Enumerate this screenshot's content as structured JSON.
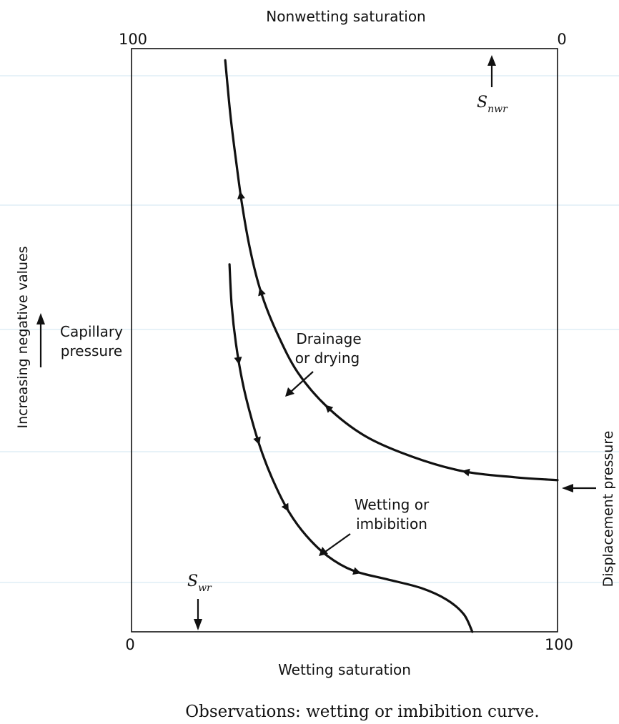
{
  "chart_data": {
    "type": "line",
    "title": "",
    "caption": "Observations: wetting or imbibition curve.",
    "top_axis": {
      "label": "Nonwetting saturation",
      "tick_left": "100",
      "tick_right": "0"
    },
    "bottom_axis": {
      "label": "Wetting saturation",
      "tick_left": "0",
      "tick_right": "100",
      "xlim": [
        0,
        100
      ]
    },
    "left_axis": {
      "label_rotated": "Increasing negative values",
      "label_line1": "Capillary",
      "label_line2": "pressure"
    },
    "right_label": "Displacement pressure",
    "ylim": [
      0,
      100
    ],
    "annotations": {
      "snwr": {
        "main": "S",
        "sub": "nwr",
        "x": 85
      },
      "swr": {
        "main": "S",
        "sub": "wr",
        "x": 16
      },
      "drainage": {
        "line1": "Drainage",
        "line2": "or drying"
      },
      "wetting": {
        "line1": "Wetting or",
        "line2": "imbibition"
      }
    },
    "series": [
      {
        "name": "Drainage or drying",
        "x": [
          100,
          90,
          78,
          66,
          55,
          46,
          39,
          34,
          30.5,
          28,
          26,
          24.5,
          23.3,
          22.5,
          22
        ],
        "y": [
          26,
          26.5,
          27.5,
          30,
          33.5,
          38.5,
          44.5,
          51.5,
          58,
          65,
          73,
          81,
          88,
          94,
          98
        ],
        "direction": "decreasing-x"
      },
      {
        "name": "Wetting or imbibition",
        "x": [
          23,
          23.5,
          24.5,
          26,
          28,
          30.5,
          33.5,
          37,
          41,
          46,
          52,
          60,
          68,
          74,
          78,
          80
        ],
        "y": [
          63,
          56,
          49.5,
          43,
          37,
          31,
          25.5,
          20.5,
          16.5,
          13,
          10.5,
          9,
          7.5,
          5.5,
          3,
          0
        ],
        "direction": "increasing-x"
      }
    ]
  }
}
